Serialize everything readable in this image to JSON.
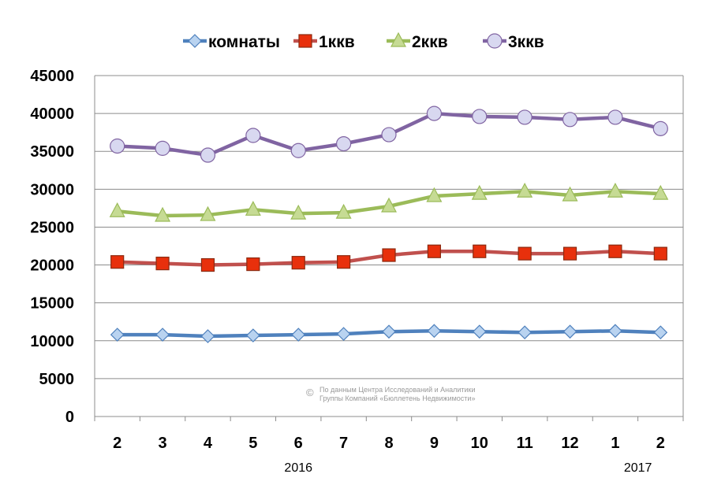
{
  "chart_data": {
    "type": "line",
    "title": "",
    "xlabel": "",
    "ylabel": "",
    "categories": [
      "2",
      "3",
      "4",
      "5",
      "6",
      "7",
      "8",
      "9",
      "10",
      "11",
      "12",
      "1",
      "2"
    ],
    "year_labels": [
      {
        "label": "2016",
        "under_index": 4
      },
      {
        "label": "2017",
        "under_index": 11.5
      }
    ],
    "ylim": [
      0,
      45000
    ],
    "yticks": [
      0,
      5000,
      10000,
      15000,
      20000,
      25000,
      30000,
      35000,
      40000,
      45000
    ],
    "grid": true,
    "legend_position": "top",
    "series": [
      {
        "name": "комнаты",
        "color": "#4F81BD",
        "marker": "diamond",
        "marker_fill": "#B9D3F0",
        "values": [
          10800,
          10800,
          10600,
          10700,
          10800,
          10900,
          11200,
          11300,
          11200,
          11100,
          11200,
          11300,
          11100
        ]
      },
      {
        "name": "1ккв",
        "color": "#C0504D",
        "marker": "square",
        "marker_fill": "#E8300C",
        "values": [
          20400,
          20200,
          20000,
          20100,
          20300,
          20400,
          21300,
          21800,
          21800,
          21500,
          21500,
          21800,
          21500
        ]
      },
      {
        "name": "2ккв",
        "color": "#9BBB59",
        "marker": "triangle",
        "marker_fill": "#C6DB94",
        "values": [
          27100,
          26500,
          26600,
          27300,
          26800,
          26900,
          27750,
          29100,
          29400,
          29700,
          29200,
          29700,
          29400
        ]
      },
      {
        "name": "3ккв",
        "color": "#8064A2",
        "marker": "circle",
        "marker_fill": "#D8D8F0",
        "values": [
          35700,
          35400,
          34500,
          37100,
          35100,
          36000,
          37200,
          40000,
          39600,
          39500,
          39200,
          39500,
          38000
        ]
      }
    ],
    "annotation": {
      "symbol": "©",
      "line1": "По данным Центра Исследований и Аналитики",
      "line2": "Группы Компаний «Бюллетень Недвижимости»"
    }
  }
}
